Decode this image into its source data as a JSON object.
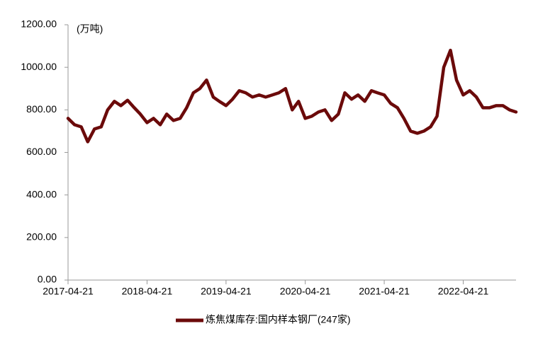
{
  "chart_data": {
    "type": "line",
    "annotation": "(万吨)",
    "x": [
      "2017-04-21",
      "2017-05-21",
      "2017-06-21",
      "2017-07-21",
      "2017-08-21",
      "2017-09-21",
      "2017-10-21",
      "2017-11-21",
      "2017-12-21",
      "2018-01-21",
      "2018-02-21",
      "2018-03-21",
      "2018-04-21",
      "2018-05-21",
      "2018-06-21",
      "2018-07-21",
      "2018-08-21",
      "2018-09-21",
      "2018-10-21",
      "2018-11-21",
      "2018-12-21",
      "2019-01-21",
      "2019-02-21",
      "2019-03-21",
      "2019-04-21",
      "2019-05-21",
      "2019-06-21",
      "2019-07-21",
      "2019-08-21",
      "2019-09-21",
      "2019-10-21",
      "2019-11-21",
      "2019-12-21",
      "2020-01-21",
      "2020-02-21",
      "2020-03-21",
      "2020-04-21",
      "2020-05-21",
      "2020-06-21",
      "2020-07-21",
      "2020-08-21",
      "2020-09-21",
      "2020-10-21",
      "2020-11-21",
      "2020-12-21",
      "2021-01-21",
      "2021-02-21",
      "2021-03-21",
      "2021-04-21",
      "2021-05-21",
      "2021-06-21",
      "2021-07-21",
      "2021-08-21",
      "2021-09-21",
      "2021-10-21",
      "2021-11-21",
      "2021-12-21",
      "2022-01-21",
      "2022-02-21",
      "2022-03-21",
      "2022-04-21",
      "2022-05-21",
      "2022-06-21",
      "2022-07-21",
      "2022-08-21",
      "2022-09-21",
      "2022-10-21",
      "2022-11-21",
      "2022-12-21"
    ],
    "series": [
      {
        "name": "炼焦煤库存:国内样本钢厂(247家)",
        "color": "#6b0a0a",
        "values": [
          760,
          730,
          720,
          650,
          710,
          720,
          800,
          840,
          820,
          845,
          810,
          780,
          740,
          760,
          730,
          780,
          750,
          760,
          810,
          880,
          900,
          940,
          860,
          840,
          820,
          850,
          890,
          880,
          860,
          870,
          860,
          870,
          880,
          900,
          800,
          840,
          760,
          770,
          790,
          800,
          750,
          780,
          880,
          850,
          870,
          840,
          890,
          880,
          870,
          830,
          810,
          760,
          700,
          690,
          700,
          720,
          770,
          1000,
          1080,
          940,
          870,
          890,
          860,
          810,
          810,
          820,
          820,
          800,
          790
        ]
      }
    ],
    "xlim": [
      "2017-04-21",
      "2022-12-21"
    ],
    "xticks": [
      "2017-04-21",
      "2018-04-21",
      "2019-04-21",
      "2020-04-21",
      "2021-04-21",
      "2022-04-21"
    ],
    "ylim": [
      0,
      1200
    ],
    "yticks": [
      {
        "value": 0,
        "label": "0.00"
      },
      {
        "value": 200,
        "label": "200.00"
      },
      {
        "value": 400,
        "label": "400.00"
      },
      {
        "value": 600,
        "label": "600.00"
      },
      {
        "value": 800,
        "label": "800.00"
      },
      {
        "value": 1000,
        "label": "1000.00"
      },
      {
        "value": 1200,
        "label": "1200.00"
      }
    ],
    "grid": false,
    "legend": "bottom"
  }
}
